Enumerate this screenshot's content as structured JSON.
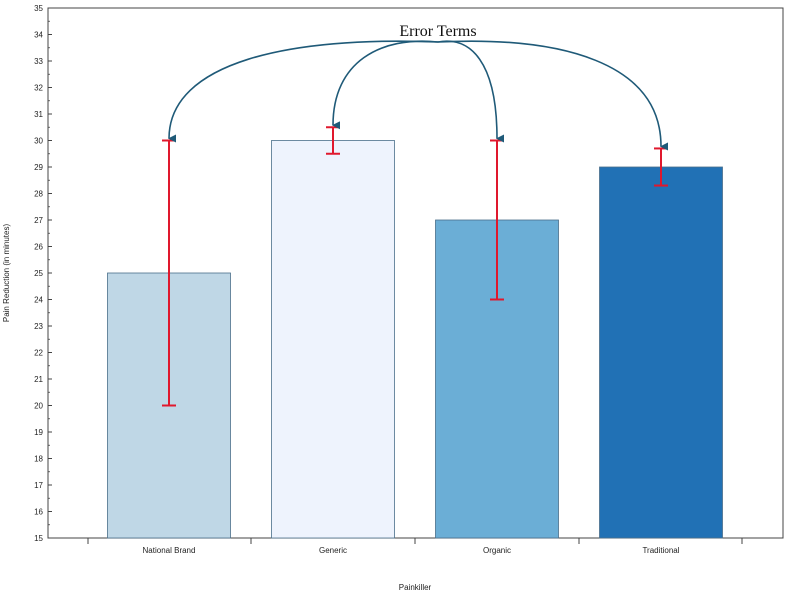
{
  "chart_data": {
    "type": "bar",
    "categories": [
      "National Brand",
      "Generic",
      "Organic",
      "Traditional"
    ],
    "values": [
      25,
      30,
      27,
      29
    ],
    "error_low": [
      20,
      29.5,
      24,
      28.3
    ],
    "error_high": [
      30,
      30.5,
      30,
      29.7
    ],
    "bar_colors": [
      "#bfd7e6",
      "#eef3fd",
      "#6baed6",
      "#2171b5"
    ],
    "error_color": "#e0182d",
    "arrow_color": "#1f5a78",
    "xlabel": "Painkiller",
    "ylabel": "Pain Reduction (in minutes)",
    "ylim": [
      15,
      35
    ],
    "yticks": [
      15,
      16,
      17,
      18,
      19,
      20,
      21,
      22,
      23,
      24,
      25,
      26,
      27,
      28,
      29,
      30,
      31,
      32,
      33,
      34,
      35
    ],
    "annotation": "Error Terms",
    "grid": false,
    "legend": "none"
  }
}
